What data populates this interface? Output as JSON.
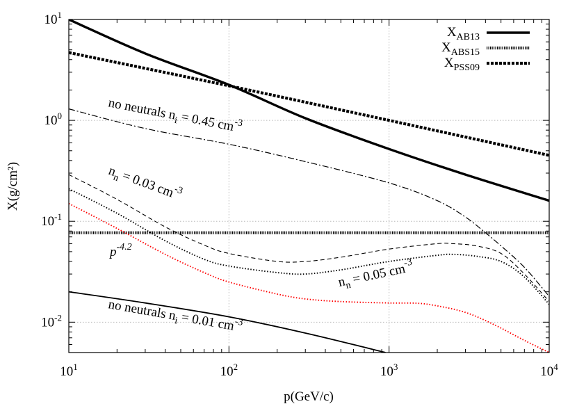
{
  "chart_data": {
    "type": "line",
    "xlabel": "p(GeV/c)",
    "ylabel": "X(g/cm²)",
    "x_scale": "log",
    "y_scale": "log",
    "xlim": [
      10,
      10000
    ],
    "ylim": [
      0.005,
      10
    ],
    "grid": true,
    "legend_position": "top-right",
    "x_ticks": [
      {
        "value": 10,
        "base": "10",
        "exp": "1"
      },
      {
        "value": 100,
        "base": "10",
        "exp": "2"
      },
      {
        "value": 1000,
        "base": "10",
        "exp": "3"
      },
      {
        "value": 10000,
        "base": "10",
        "exp": "4"
      }
    ],
    "y_ticks": [
      {
        "value": 0.01,
        "base": "10",
        "exp": "-2"
      },
      {
        "value": 0.1,
        "base": "10",
        "exp": "-1"
      },
      {
        "value": 1,
        "base": "10",
        "exp": "0"
      },
      {
        "value": 10,
        "base": "10",
        "exp": "1"
      }
    ],
    "series": [
      {
        "name": "X_AB13",
        "label_main": "X",
        "label_sub": "AB13",
        "style": "thick-solid",
        "color": "#000000",
        "points": [
          [
            10,
            10
          ],
          [
            30,
            4.6
          ],
          [
            100,
            2.25
          ],
          [
            300,
            1.05
          ],
          [
            1000,
            0.52
          ],
          [
            3000,
            0.29
          ],
          [
            10000,
            0.16
          ]
        ]
      },
      {
        "name": "X_ABS15",
        "label_main": "X",
        "label_sub": "ABS15",
        "style": "thick-dotted",
        "color": "#000000",
        "points": [
          [
            10,
            0.077
          ],
          [
            10000,
            0.077
          ]
        ]
      },
      {
        "name": "X_PSS09",
        "label_main": "X",
        "label_sub": "PSS09",
        "style": "thick-dashed",
        "color": "#000000",
        "points": [
          [
            10,
            4.7
          ],
          [
            100,
            2.2
          ],
          [
            1000,
            1.0
          ],
          [
            10000,
            0.45
          ]
        ]
      },
      {
        "name": "no neutrals n_i = 0.45 cm^-3",
        "style": "dash-dot",
        "color": "#000000",
        "points": [
          [
            10,
            1.3
          ],
          [
            30,
            0.83
          ],
          [
            100,
            0.58
          ],
          [
            300,
            0.39
          ],
          [
            1000,
            0.24
          ],
          [
            2000,
            0.16
          ],
          [
            3000,
            0.11
          ],
          [
            4000,
            0.077
          ],
          [
            5000,
            0.057
          ],
          [
            7000,
            0.035
          ],
          [
            10000,
            0.018
          ]
        ]
      },
      {
        "name": "n_n = 0.03 cm^-3",
        "style": "thin-dashed",
        "color": "#000000",
        "points": [
          [
            10,
            0.29
          ],
          [
            20,
            0.165
          ],
          [
            40,
            0.088
          ],
          [
            70,
            0.058
          ],
          [
            100,
            0.048
          ],
          [
            200,
            0.04
          ],
          [
            300,
            0.04
          ],
          [
            500,
            0.044
          ],
          [
            1000,
            0.053
          ],
          [
            2000,
            0.06
          ],
          [
            2500,
            0.06
          ],
          [
            3500,
            0.057
          ],
          [
            5000,
            0.048
          ],
          [
            7000,
            0.03
          ],
          [
            10000,
            0.016
          ]
        ]
      },
      {
        "name": "n_n = 0.05 cm^-3",
        "style": "thin-dotted",
        "color": "#000000",
        "points": [
          [
            10,
            0.21
          ],
          [
            20,
            0.12
          ],
          [
            40,
            0.064
          ],
          [
            70,
            0.042
          ],
          [
            100,
            0.036
          ],
          [
            200,
            0.031
          ],
          [
            300,
            0.03
          ],
          [
            500,
            0.033
          ],
          [
            1000,
            0.04
          ],
          [
            2000,
            0.046
          ],
          [
            2500,
            0.047
          ],
          [
            3500,
            0.045
          ],
          [
            5000,
            0.04
          ],
          [
            7000,
            0.028
          ],
          [
            10000,
            0.015
          ]
        ]
      },
      {
        "name": "p^-4.2",
        "style": "thin-dotted",
        "color": "#ff0000",
        "points": [
          [
            10,
            0.15
          ],
          [
            20,
            0.085
          ],
          [
            40,
            0.047
          ],
          [
            70,
            0.031
          ],
          [
            100,
            0.025
          ],
          [
            200,
            0.019
          ],
          [
            300,
            0.017
          ],
          [
            500,
            0.016
          ],
          [
            1000,
            0.0155
          ],
          [
            1500,
            0.0154
          ],
          [
            2000,
            0.0145
          ],
          [
            3000,
            0.0125
          ],
          [
            4500,
            0.0095
          ],
          [
            7000,
            0.0066
          ],
          [
            10000,
            0.005
          ]
        ]
      },
      {
        "name": "no neutrals n_i = 0.01 cm^-3",
        "style": "thin-solid",
        "color": "#000000",
        "points": [
          [
            10,
            0.02
          ],
          [
            30,
            0.0155
          ],
          [
            100,
            0.0113
          ],
          [
            300,
            0.0078
          ],
          [
            950,
            0.005
          ]
        ]
      }
    ],
    "annotations": [
      {
        "id": "ann-045",
        "parts": [
          [
            "no neutrals  n",
            ""
          ],
          [
            "i",
            "sub"
          ],
          [
            " = 0.45 cm",
            ""
          ],
          [
            "-3",
            "sup"
          ]
        ]
      },
      {
        "id": "ann-003",
        "parts": [
          [
            "n",
            ""
          ],
          [
            "n",
            "sub"
          ],
          [
            " = 0.03 cm",
            ""
          ],
          [
            "-3",
            "sup"
          ]
        ]
      },
      {
        "id": "ann-p42",
        "parts": [
          [
            "p",
            "italic"
          ],
          [
            "-4.2",
            "sup-italic"
          ]
        ]
      },
      {
        "id": "ann-005",
        "parts": [
          [
            "n",
            ""
          ],
          [
            "n",
            "sub"
          ],
          [
            " = 0.05 cm",
            ""
          ],
          [
            "-3",
            "sup"
          ]
        ]
      },
      {
        "id": "ann-001",
        "parts": [
          [
            "no neutrals  n",
            ""
          ],
          [
            "i",
            "sub"
          ],
          [
            " = 0.01 cm",
            ""
          ],
          [
            "-3",
            "sup"
          ]
        ]
      }
    ]
  }
}
